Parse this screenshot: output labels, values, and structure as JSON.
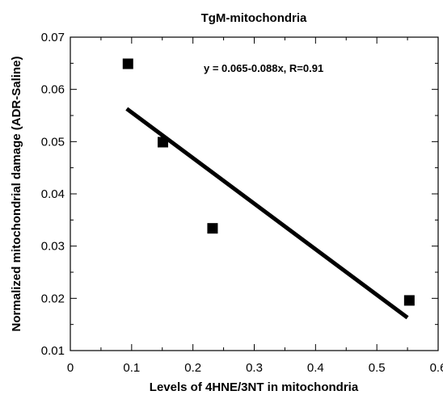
{
  "chart_data": {
    "type": "scatter",
    "title": "TgM-mitochondria",
    "xlabel": "Levels of 4HNE/3NT in mitochondria",
    "ylabel": "Normalized mitochondrial damage (ADR-Saline)",
    "xlim": [
      0,
      0.6
    ],
    "ylim": [
      0.01,
      0.07
    ],
    "x_ticks": [
      "0",
      "0.1",
      "0.2",
      "0.3",
      "0.4",
      "0.5",
      "0.6"
    ],
    "y_ticks": [
      "0.01",
      "0.02",
      "0.03",
      "0.04",
      "0.05",
      "0.06",
      "0.07"
    ],
    "grid": false,
    "points": [
      {
        "x": 0.094,
        "y": 0.0649
      },
      {
        "x": 0.151,
        "y": 0.0499
      },
      {
        "x": 0.232,
        "y": 0.0334
      },
      {
        "x": 0.553,
        "y": 0.0196
      }
    ],
    "fit_line": {
      "x": [
        0.092,
        0.55
      ],
      "y": [
        0.0563,
        0.0163
      ]
    },
    "annotation": "y = 0.065-0.088x, R=0.91",
    "marker_color": "#000000",
    "line_color": "#000000"
  }
}
